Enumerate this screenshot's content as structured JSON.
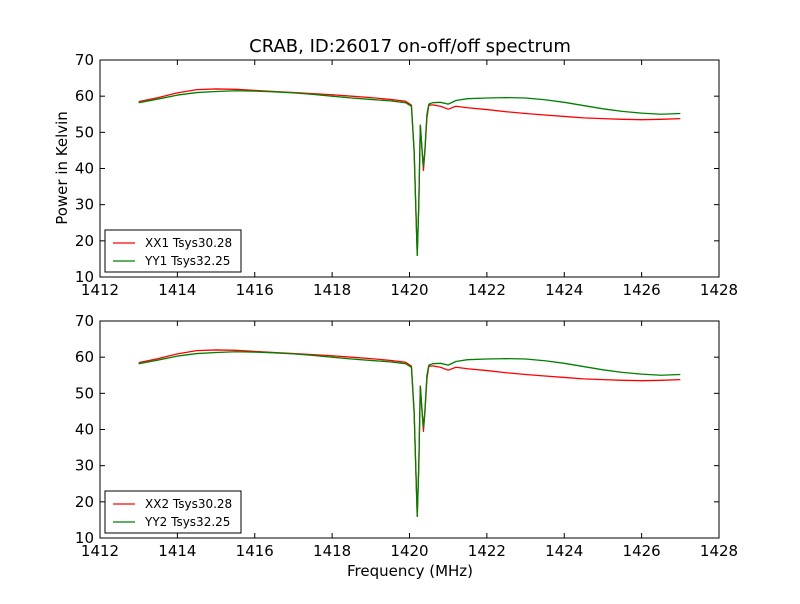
{
  "chart_data": [
    {
      "type": "line",
      "title": "CRAB, ID:26017 on-off/off spectrum",
      "xlabel": "",
      "ylabel": "Power in Kelvin",
      "xlim": [
        1412,
        1428
      ],
      "ylim": [
        10,
        70
      ],
      "xticks": [
        "1412",
        "1414",
        "1416",
        "1418",
        "1420",
        "1422",
        "1424",
        "1426",
        "1428"
      ],
      "yticks": [
        "10",
        "20",
        "30",
        "40",
        "50",
        "60",
        "70"
      ],
      "grid": false,
      "legend_position": "lower-left",
      "series": [
        {
          "name": "XX1 Tsys30.28",
          "color": "#ff0000",
          "x": [
            1413.0,
            1413.5,
            1414.0,
            1414.5,
            1415.0,
            1415.5,
            1416.0,
            1416.5,
            1417.0,
            1417.5,
            1418.0,
            1418.5,
            1419.0,
            1419.5,
            1419.9,
            1420.05,
            1420.12,
            1420.16,
            1420.2,
            1420.24,
            1420.28,
            1420.32,
            1420.36,
            1420.4,
            1420.45,
            1420.5,
            1420.6,
            1420.8,
            1421.0,
            1421.2,
            1421.5,
            1422.0,
            1422.5,
            1423.0,
            1423.5,
            1424.0,
            1424.5,
            1425.0,
            1425.5,
            1426.0,
            1426.5,
            1427.0
          ],
          "y": [
            58.5,
            59.6,
            60.9,
            61.8,
            62.0,
            61.9,
            61.6,
            61.3,
            61.0,
            60.7,
            60.4,
            60.0,
            59.6,
            59.1,
            58.6,
            57.5,
            45.0,
            30.0,
            16.0,
            30.0,
            52.0,
            46.0,
            39.5,
            45.0,
            54.0,
            57.5,
            57.6,
            57.2,
            56.4,
            57.2,
            56.8,
            56.3,
            55.7,
            55.2,
            54.8,
            54.4,
            54.0,
            53.8,
            53.6,
            53.5,
            53.6,
            53.8
          ]
        },
        {
          "name": "YY1 Tsys32.25",
          "color": "#008000",
          "x": [
            1413.0,
            1413.5,
            1414.0,
            1414.5,
            1415.0,
            1415.5,
            1416.0,
            1416.5,
            1417.0,
            1417.5,
            1418.0,
            1418.5,
            1419.0,
            1419.5,
            1419.9,
            1420.05,
            1420.12,
            1420.16,
            1420.2,
            1420.24,
            1420.28,
            1420.32,
            1420.36,
            1420.4,
            1420.45,
            1420.5,
            1420.6,
            1420.8,
            1421.0,
            1421.2,
            1421.5,
            1422.0,
            1422.5,
            1423.0,
            1423.5,
            1424.0,
            1424.5,
            1425.0,
            1425.5,
            1426.0,
            1426.5,
            1427.0
          ],
          "y": [
            58.2,
            59.2,
            60.3,
            61.0,
            61.3,
            61.5,
            61.4,
            61.2,
            60.9,
            60.5,
            60.0,
            59.5,
            59.1,
            58.7,
            58.2,
            57.2,
            44.5,
            30.5,
            16.0,
            30.0,
            52.0,
            45.5,
            40.5,
            45.5,
            55.0,
            57.8,
            58.2,
            58.3,
            57.8,
            58.8,
            59.3,
            59.5,
            59.6,
            59.5,
            59.0,
            58.3,
            57.4,
            56.5,
            55.8,
            55.3,
            55.0,
            55.2
          ]
        }
      ]
    },
    {
      "type": "line",
      "title": "",
      "xlabel": "Frequency (MHz)",
      "ylabel": "",
      "xlim": [
        1412,
        1428
      ],
      "ylim": [
        10,
        70
      ],
      "xticks": [
        "1412",
        "1414",
        "1416",
        "1418",
        "1420",
        "1422",
        "1424",
        "1426",
        "1428"
      ],
      "yticks": [
        "10",
        "20",
        "30",
        "40",
        "50",
        "60",
        "70"
      ],
      "grid": false,
      "legend_position": "lower-left",
      "series": [
        {
          "name": "XX2 Tsys30.28",
          "color": "#ff0000",
          "x": [
            1413.0,
            1413.5,
            1414.0,
            1414.5,
            1415.0,
            1415.5,
            1416.0,
            1416.5,
            1417.0,
            1417.5,
            1418.0,
            1418.5,
            1419.0,
            1419.5,
            1419.9,
            1420.05,
            1420.12,
            1420.16,
            1420.2,
            1420.24,
            1420.28,
            1420.32,
            1420.36,
            1420.4,
            1420.45,
            1420.5,
            1420.6,
            1420.8,
            1421.0,
            1421.2,
            1421.5,
            1422.0,
            1422.5,
            1423.0,
            1423.5,
            1424.0,
            1424.5,
            1425.0,
            1425.5,
            1426.0,
            1426.5,
            1427.0
          ],
          "y": [
            58.5,
            59.6,
            60.9,
            61.8,
            62.0,
            61.9,
            61.6,
            61.3,
            61.0,
            60.7,
            60.4,
            60.0,
            59.6,
            59.1,
            58.6,
            57.5,
            45.0,
            30.0,
            16.0,
            30.0,
            52.0,
            46.0,
            39.5,
            45.0,
            54.0,
            57.5,
            57.6,
            57.2,
            56.4,
            57.2,
            56.8,
            56.3,
            55.7,
            55.2,
            54.8,
            54.4,
            54.0,
            53.8,
            53.6,
            53.5,
            53.6,
            53.8
          ]
        },
        {
          "name": "YY2 Tsys32.25",
          "color": "#008000",
          "x": [
            1413.0,
            1413.5,
            1414.0,
            1414.5,
            1415.0,
            1415.5,
            1416.0,
            1416.5,
            1417.0,
            1417.5,
            1418.0,
            1418.5,
            1419.0,
            1419.5,
            1419.9,
            1420.05,
            1420.12,
            1420.16,
            1420.2,
            1420.24,
            1420.28,
            1420.32,
            1420.36,
            1420.4,
            1420.45,
            1420.5,
            1420.6,
            1420.8,
            1421.0,
            1421.2,
            1421.5,
            1422.0,
            1422.5,
            1423.0,
            1423.5,
            1424.0,
            1424.5,
            1425.0,
            1425.5,
            1426.0,
            1426.5,
            1427.0
          ],
          "y": [
            58.2,
            59.2,
            60.3,
            61.0,
            61.3,
            61.5,
            61.4,
            61.2,
            60.9,
            60.5,
            60.0,
            59.5,
            59.1,
            58.7,
            58.2,
            57.2,
            44.5,
            30.5,
            16.0,
            30.0,
            52.0,
            45.5,
            40.5,
            45.5,
            55.0,
            57.8,
            58.2,
            58.3,
            57.8,
            58.8,
            59.3,
            59.5,
            59.6,
            59.5,
            59.0,
            58.3,
            57.4,
            56.5,
            55.8,
            55.3,
            55.0,
            55.2
          ]
        }
      ]
    }
  ]
}
